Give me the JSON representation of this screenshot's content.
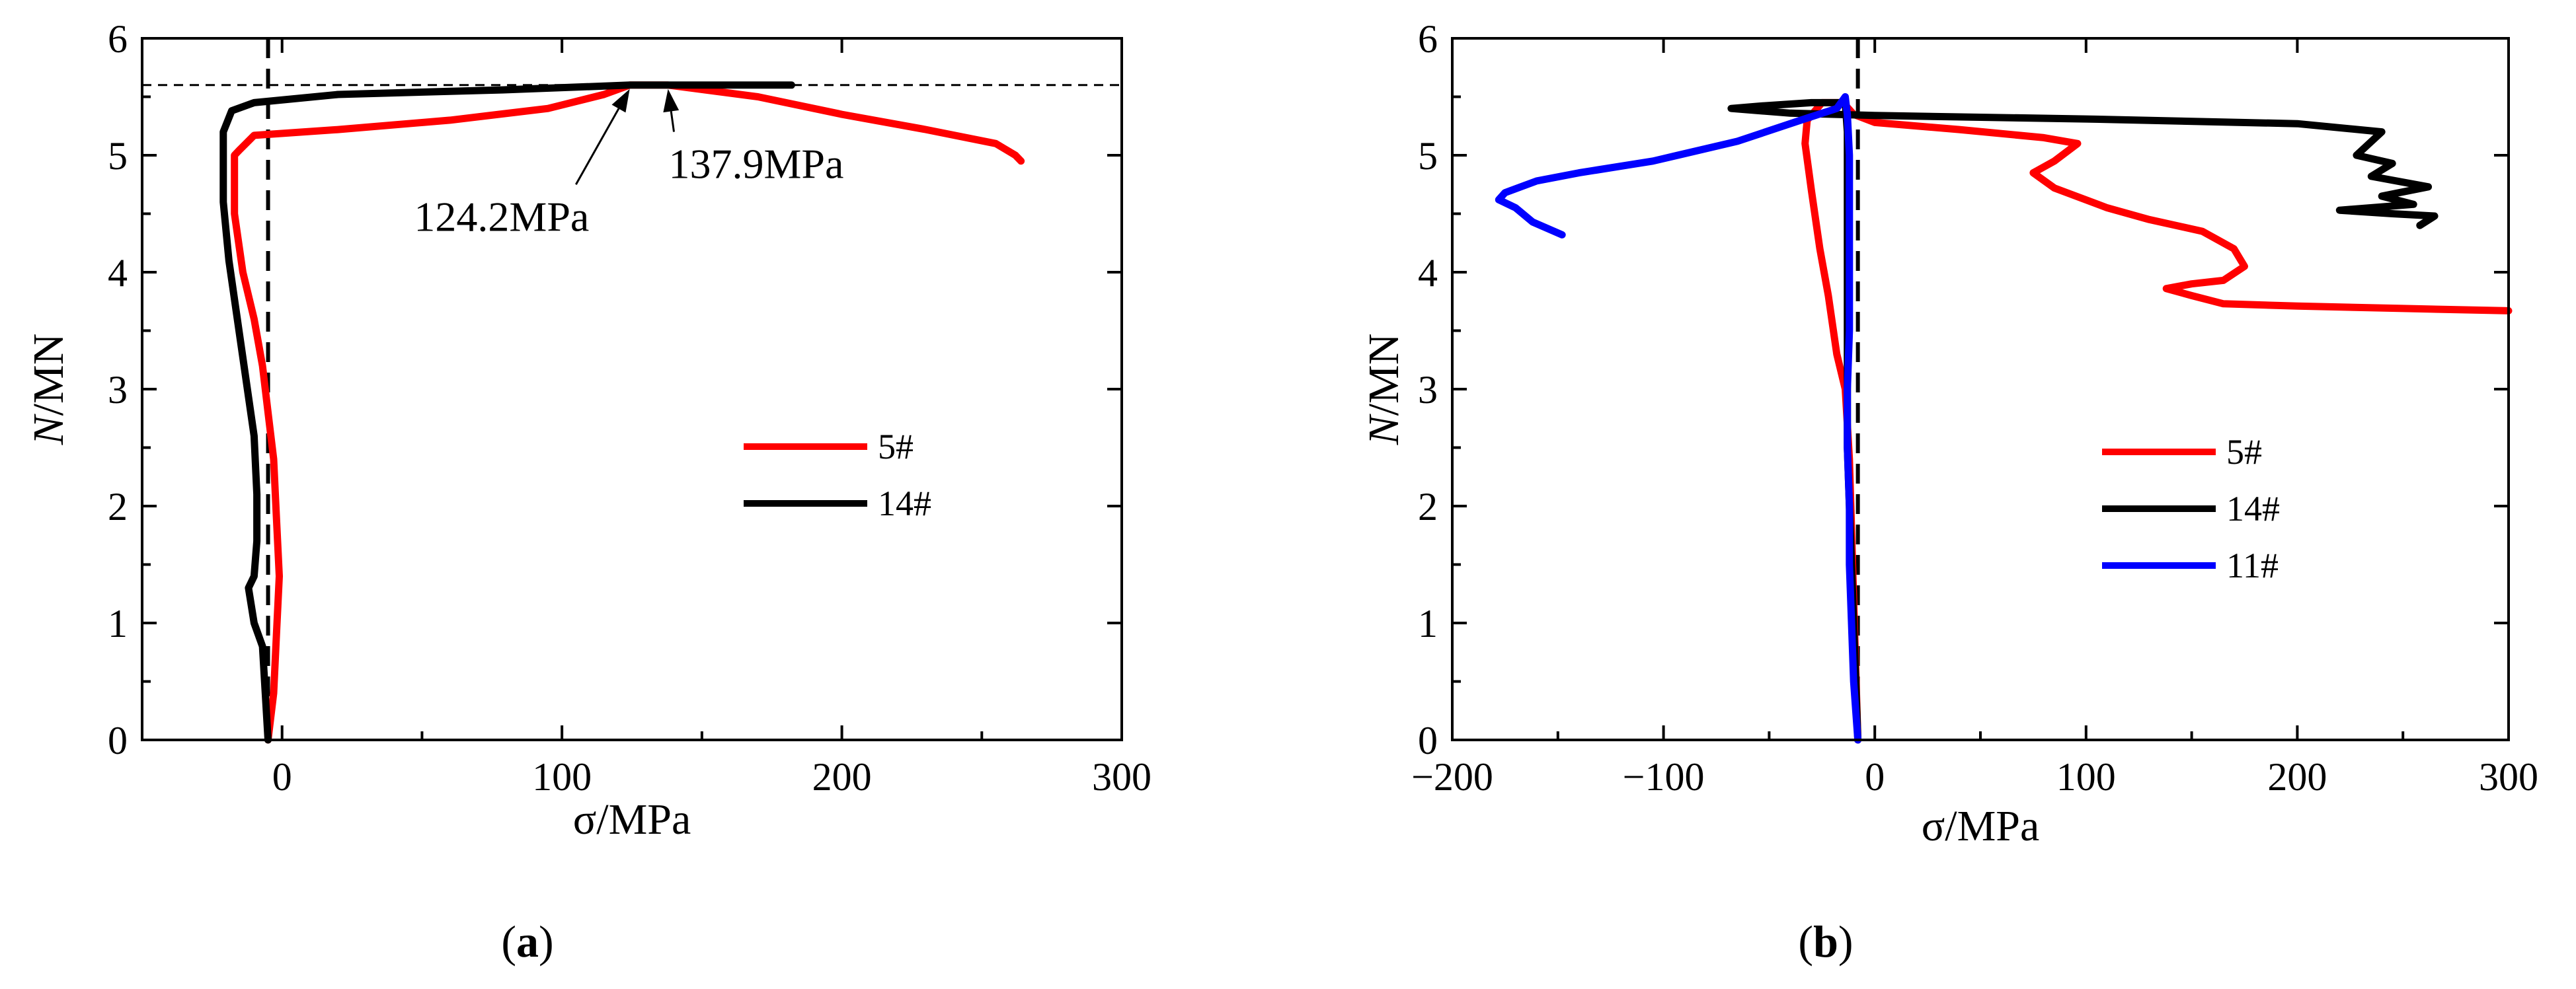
{
  "chart_data": [
    {
      "type": "line",
      "panel_label": {
        "open": "(",
        "letter": "a",
        "close": ")"
      },
      "xlabel": "σ/MPa",
      "ylabel": {
        "italic": "N",
        "rest": "/MN"
      },
      "xlim": [
        -50,
        300
      ],
      "ylim": [
        0,
        6
      ],
      "xticks": [
        0,
        100,
        200,
        300
      ],
      "yticks": [
        0,
        1,
        2,
        3,
        4,
        5,
        6
      ],
      "legend_position": "center-right",
      "reference_lines": [
        {
          "orientation": "horizontal",
          "value": 5.6,
          "style": "dashed-thin",
          "color": "#000000"
        },
        {
          "orientation": "vertical",
          "value": -5,
          "style": "dashed-thick",
          "color": "#000000"
        }
      ],
      "series": [
        {
          "name": "5#",
          "color": "#ff0000",
          "points": [
            [
              -5,
              0
            ],
            [
              -3,
              0.4
            ],
            [
              -2,
              0.9
            ],
            [
              -1,
              1.4
            ],
            [
              -2,
              1.9
            ],
            [
              -3,
              2.4
            ],
            [
              -5,
              2.8
            ],
            [
              -7,
              3.2
            ],
            [
              -10,
              3.6
            ],
            [
              -14,
              4.0
            ],
            [
              -17,
              4.5
            ],
            [
              -17,
              5.0
            ],
            [
              -15,
              5.05
            ],
            [
              -10,
              5.17
            ],
            [
              20,
              5.22
            ],
            [
              60,
              5.3
            ],
            [
              95,
              5.4
            ],
            [
              115,
              5.52
            ],
            [
              124.2,
              5.6
            ],
            [
              137.9,
              5.6
            ],
            [
              170,
              5.5
            ],
            [
              200,
              5.35
            ],
            [
              230,
              5.22
            ],
            [
              255,
              5.1
            ],
            [
              262,
              5.0
            ],
            [
              264,
              4.95
            ]
          ]
        },
        {
          "name": "14#",
          "color": "#000000",
          "points": [
            [
              -5,
              0
            ],
            [
              -6,
              0.4
            ],
            [
              -7,
              0.8
            ],
            [
              -10,
              1.0
            ],
            [
              -12,
              1.3
            ],
            [
              -10,
              1.4
            ],
            [
              -9,
              1.7
            ],
            [
              -9,
              2.1
            ],
            [
              -10,
              2.6
            ],
            [
              -13,
              3.1
            ],
            [
              -16,
              3.6
            ],
            [
              -19,
              4.1
            ],
            [
              -21,
              4.6
            ],
            [
              -21,
              5.2
            ],
            [
              -18,
              5.38
            ],
            [
              -10,
              5.45
            ],
            [
              20,
              5.52
            ],
            [
              80,
              5.56
            ],
            [
              124.2,
              5.6
            ],
            [
              150,
              5.6
            ],
            [
              182,
              5.6
            ]
          ]
        }
      ],
      "annotations": [
        {
          "text": "124.2MPa",
          "target": [
            124.2,
            5.6
          ],
          "anchor": [
            105,
            4.75
          ]
        },
        {
          "text": "137.9MPa",
          "target": [
            137.9,
            5.6
          ],
          "anchor": [
            140,
            5.2
          ]
        }
      ]
    },
    {
      "type": "line",
      "panel_label": {
        "open": "(",
        "letter": "b",
        "close": ")"
      },
      "xlabel": "σ/MPa",
      "ylabel": {
        "italic": "N",
        "rest": "/MN"
      },
      "xlim": [
        -200,
        300
      ],
      "ylim": [
        0,
        6
      ],
      "xticks": [
        -200,
        -100,
        0,
        100,
        200,
        300
      ],
      "yticks": [
        0,
        1,
        2,
        3,
        4,
        5,
        6
      ],
      "legend_position": "lower-center",
      "reference_lines": [
        {
          "orientation": "vertical",
          "value": -8,
          "style": "dashed-thick",
          "color": "#000000"
        }
      ],
      "series": [
        {
          "name": "5#",
          "color": "#ff0000",
          "points": [
            [
              -8,
              0
            ],
            [
              -9,
              0.6
            ],
            [
              -10,
              1.2
            ],
            [
              -11,
              1.8
            ],
            [
              -12,
              2.4
            ],
            [
              -14,
              3.0
            ],
            [
              -18,
              3.3
            ],
            [
              -22,
              3.8
            ],
            [
              -26,
              4.2
            ],
            [
              -30,
              4.7
            ],
            [
              -33,
              5.1
            ],
            [
              -32,
              5.3
            ],
            [
              -25,
              5.45
            ],
            [
              -15,
              5.45
            ],
            [
              -10,
              5.35
            ],
            [
              0,
              5.28
            ],
            [
              40,
              5.22
            ],
            [
              80,
              5.15
            ],
            [
              96,
              5.1
            ],
            [
              85,
              4.95
            ],
            [
              75,
              4.85
            ],
            [
              85,
              4.72
            ],
            [
              110,
              4.55
            ],
            [
              130,
              4.45
            ],
            [
              155,
              4.35
            ],
            [
              170,
              4.2
            ],
            [
              175,
              4.05
            ],
            [
              165,
              3.93
            ],
            [
              150,
              3.9
            ],
            [
              138,
              3.86
            ],
            [
              150,
              3.8
            ],
            [
              165,
              3.73
            ],
            [
              200,
              3.71
            ],
            [
              250,
              3.69
            ],
            [
              300,
              3.67
            ]
          ]
        },
        {
          "name": "14#",
          "color": "#000000",
          "points": [
            [
              -8,
              0
            ],
            [
              -9,
              0.5
            ],
            [
              -10,
              1.0
            ],
            [
              -11,
              1.5
            ],
            [
              -12,
              2.0
            ],
            [
              -13,
              2.5
            ],
            [
              -13,
              3.0
            ],
            [
              -13,
              3.5
            ],
            [
              -13,
              4.0
            ],
            [
              -13,
              4.6
            ],
            [
              -13,
              5.2
            ],
            [
              -14,
              5.45
            ],
            [
              -30,
              5.45
            ],
            [
              -55,
              5.42
            ],
            [
              -68,
              5.4
            ],
            [
              -40,
              5.36
            ],
            [
              0,
              5.34
            ],
            [
              100,
              5.31
            ],
            [
              200,
              5.27
            ],
            [
              240,
              5.2
            ],
            [
              228,
              5.0
            ],
            [
              245,
              4.93
            ],
            [
              235,
              4.82
            ],
            [
              262,
              4.73
            ],
            [
              240,
              4.65
            ],
            [
              255,
              4.58
            ],
            [
              220,
              4.53
            ],
            [
              245,
              4.5
            ],
            [
              265,
              4.48
            ],
            [
              258,
              4.4
            ]
          ]
        },
        {
          "name": "11#",
          "color": "#0000ff",
          "points": [
            [
              -8,
              0
            ],
            [
              -10,
              0.5
            ],
            [
              -11,
              1.0
            ],
            [
              -12,
              1.5
            ],
            [
              -12,
              2.0
            ],
            [
              -13,
              2.5
            ],
            [
              -13,
              3.0
            ],
            [
              -12,
              3.5
            ],
            [
              -12,
              4.0
            ],
            [
              -12,
              4.5
            ],
            [
              -12,
              5.0
            ],
            [
              -13,
              5.35
            ],
            [
              -14,
              5.5
            ],
            [
              -18,
              5.4
            ],
            [
              -35,
              5.3
            ],
            [
              -65,
              5.12
            ],
            [
              -105,
              4.95
            ],
            [
              -140,
              4.85
            ],
            [
              -160,
              4.78
            ],
            [
              -175,
              4.68
            ],
            [
              -178,
              4.62
            ],
            [
              -170,
              4.55
            ],
            [
              -162,
              4.43
            ],
            [
              -148,
              4.32
            ]
          ]
        }
      ],
      "annotations": []
    }
  ]
}
